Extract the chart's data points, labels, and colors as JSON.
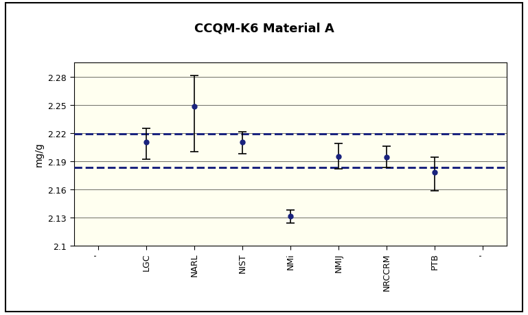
{
  "title": "CCQM-K6 Material A",
  "ylabel": "mg/g",
  "xlabels": [
    "'",
    "LGC",
    "NARL",
    "NIST",
    "NMi",
    "NMIJ",
    "NRCCRM",
    "PTB",
    "'"
  ],
  "x_positions": [
    0,
    1,
    2,
    3,
    4,
    5,
    6,
    7,
    8
  ],
  "data_x": [
    1,
    2,
    3,
    4,
    5,
    6,
    7
  ],
  "data_y": [
    2.21,
    2.248,
    2.21,
    2.131,
    2.195,
    2.194,
    2.178
  ],
  "data_yerr_upper": [
    0.015,
    0.033,
    0.011,
    0.007,
    0.014,
    0.012,
    0.016
  ],
  "data_yerr_lower": [
    0.018,
    0.048,
    0.012,
    0.007,
    0.013,
    0.011,
    0.02
  ],
  "hline1": 2.219,
  "hline2": 2.183,
  "ylim": [
    2.1,
    2.295
  ],
  "ytick_vals": [
    2.1,
    2.13,
    2.16,
    2.19,
    2.22,
    2.25,
    2.28
  ],
  "ytick_labels": [
    "2.1",
    "2.13",
    "2.16",
    "2.19",
    "2.22",
    "2.25",
    "2.28"
  ],
  "bg_color": "#FFFFF0",
  "outer_bg": "#ffffff",
  "point_color": "#1a237e",
  "line_color": "#1a237e",
  "title_fontsize": 13,
  "label_fontsize": 10,
  "tick_fontsize": 9
}
